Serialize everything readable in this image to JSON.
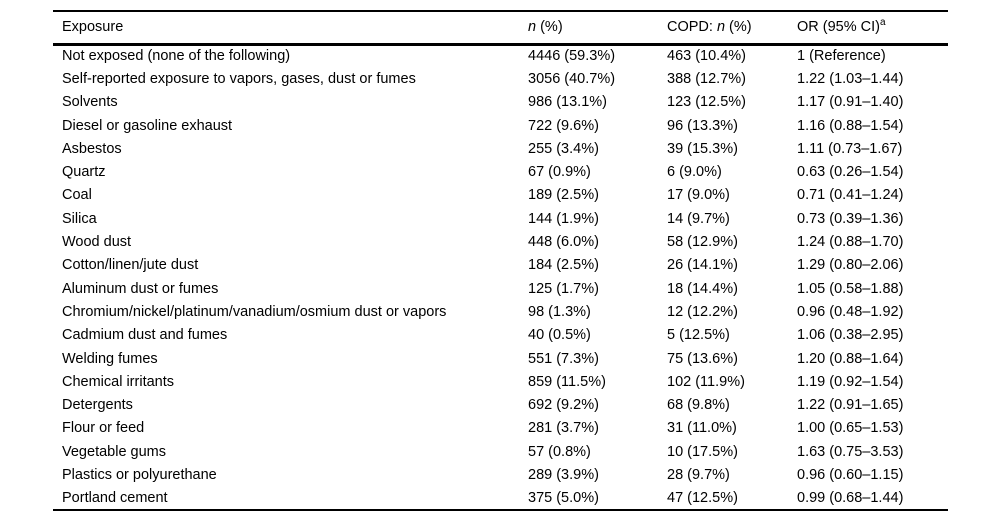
{
  "page": {
    "background": "#ffffff",
    "text_color": "#000000",
    "rule_color": "#000000"
  },
  "table": {
    "headers": {
      "exposure": "Exposure",
      "n_italic": "n",
      "n_rest": " (%)",
      "copd_prefix": "COPD: ",
      "copd_italic": "n",
      "copd_rest": " (%)",
      "or_ci": "OR (95% CI)",
      "or_ci_sup": "a"
    },
    "rows": [
      {
        "exposure": "Not exposed (none of the following)",
        "n_pct": "4446 (59.3%)",
        "copd_n_pct": "463 (10.4%)",
        "or_ci": "1 (Reference)"
      },
      {
        "exposure": "Self-reported exposure to vapors, gases, dust or fumes",
        "n_pct": "3056 (40.7%)",
        "copd_n_pct": "388 (12.7%)",
        "or_ci": "1.22 (1.03–1.44)"
      },
      {
        "exposure": "Solvents",
        "n_pct": "986 (13.1%)",
        "copd_n_pct": "123 (12.5%)",
        "or_ci": "1.17 (0.91–1.40)"
      },
      {
        "exposure": "Diesel or gasoline exhaust",
        "n_pct": "722 (9.6%)",
        "copd_n_pct": "96 (13.3%)",
        "or_ci": "1.16 (0.88–1.54)"
      },
      {
        "exposure": "Asbestos",
        "n_pct": "255 (3.4%)",
        "copd_n_pct": "39 (15.3%)",
        "or_ci": "1.11 (0.73–1.67)"
      },
      {
        "exposure": "Quartz",
        "n_pct": "67 (0.9%)",
        "copd_n_pct": "6 (9.0%)",
        "or_ci": "0.63 (0.26–1.54)"
      },
      {
        "exposure": "Coal",
        "n_pct": "189 (2.5%)",
        "copd_n_pct": "17 (9.0%)",
        "or_ci": "0.71 (0.41–1.24)"
      },
      {
        "exposure": "Silica",
        "n_pct": "144 (1.9%)",
        "copd_n_pct": "14 (9.7%)",
        "or_ci": "0.73 (0.39–1.36)"
      },
      {
        "exposure": "Wood dust",
        "n_pct": "448 (6.0%)",
        "copd_n_pct": "58 (12.9%)",
        "or_ci": "1.24 (0.88–1.70)"
      },
      {
        "exposure": "Cotton/linen/jute dust",
        "n_pct": "184 (2.5%)",
        "copd_n_pct": "26 (14.1%)",
        "or_ci": "1.29 (0.80–2.06)"
      },
      {
        "exposure": "Aluminum dust or fumes",
        "n_pct": "125 (1.7%)",
        "copd_n_pct": "18 (14.4%)",
        "or_ci": "1.05 (0.58–1.88)"
      },
      {
        "exposure": "Chromium/nickel/platinum/vanadium/osmium dust or vapors",
        "n_pct": "98 (1.3%)",
        "copd_n_pct": "12 (12.2%)",
        "or_ci": "0.96 (0.48–1.92)"
      },
      {
        "exposure": "Cadmium dust and fumes",
        "n_pct": "40 (0.5%)",
        "copd_n_pct": "5 (12.5%)",
        "or_ci": "1.06 (0.38–2.95)"
      },
      {
        "exposure": "Welding fumes",
        "n_pct": "551 (7.3%)",
        "copd_n_pct": "75 (13.6%)",
        "or_ci": "1.20 (0.88–1.64)"
      },
      {
        "exposure": "Chemical irritants",
        "n_pct": "859 (11.5%)",
        "copd_n_pct": "102 (11.9%)",
        "or_ci": "1.19 (0.92–1.54)"
      },
      {
        "exposure": "Detergents",
        "n_pct": "692 (9.2%)",
        "copd_n_pct": "68 (9.8%)",
        "or_ci": "1.22 (0.91–1.65)"
      },
      {
        "exposure": "Flour or feed",
        "n_pct": "281 (3.7%)",
        "copd_n_pct": "31 (11.0%)",
        "or_ci": "1.00 (0.65–1.53)"
      },
      {
        "exposure": "Vegetable gums",
        "n_pct": "57 (0.8%)",
        "copd_n_pct": "10 (17.5%)",
        "or_ci": "1.63 (0.75–3.53)"
      },
      {
        "exposure": "Plastics or polyurethane",
        "n_pct": "289 (3.9%)",
        "copd_n_pct": "28 (9.7%)",
        "or_ci": "0.96 (0.60–1.15)"
      },
      {
        "exposure": "Portland cement",
        "n_pct": "375 (5.0%)",
        "copd_n_pct": "47 (12.5%)",
        "or_ci": "0.99 (0.68–1.44)"
      }
    ]
  }
}
